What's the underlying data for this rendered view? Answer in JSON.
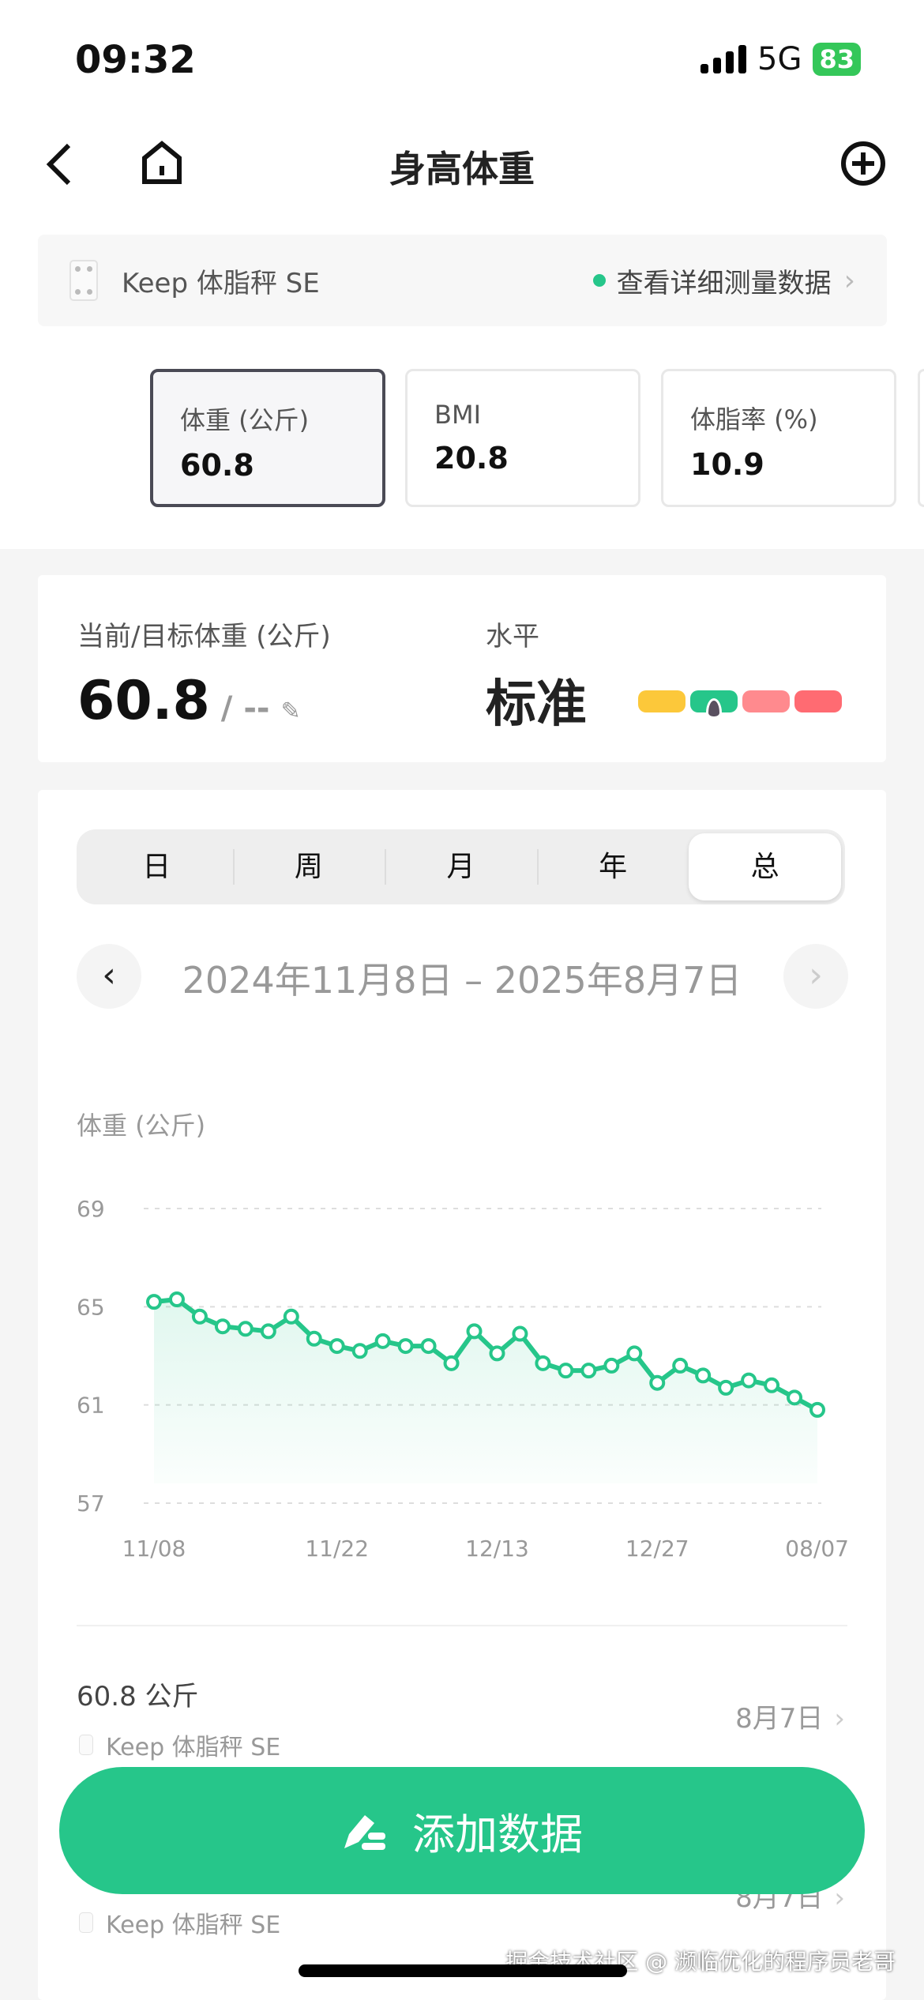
{
  "status_bar": {
    "time": "09:32",
    "network": "5G",
    "battery": "83"
  },
  "nav": {
    "title": "身高体重"
  },
  "device_bar": {
    "device": "Keep 体脂秤 SE",
    "detail_link": "查看详细测量数据"
  },
  "metrics": [
    {
      "label": "体重 (公斤)",
      "value": "60.8",
      "selected": true
    },
    {
      "label": "BMI",
      "value": "20.8",
      "selected": false
    },
    {
      "label": "体脂率 (%)",
      "value": "10.9",
      "selected": false
    }
  ],
  "summary": {
    "label": "当前/目标体重 (公斤)",
    "current": "60.8",
    "target": "/ --",
    "level_label": "水平",
    "level": "标准",
    "level_colors": [
      "#fcc83a",
      "#26c68a",
      "#ff8a8e",
      "#ff6b72"
    ],
    "level_index": 1
  },
  "tabs": [
    {
      "label": "日"
    },
    {
      "label": "周"
    },
    {
      "label": "月"
    },
    {
      "label": "年"
    },
    {
      "label": "总",
      "active": true
    }
  ],
  "date_range": "2024年11月8日 – 2025年8月7日",
  "chart_data": {
    "type": "line",
    "ylabel": "体重 (公斤)",
    "ylim": [
      57,
      69
    ],
    "yticks": [
      69,
      65,
      61,
      57
    ],
    "xticks": [
      {
        "index": 0,
        "label": "11/08"
      },
      {
        "index": 8,
        "label": "11/22"
      },
      {
        "index": 15,
        "label": "12/13"
      },
      {
        "index": 22,
        "label": "12/27"
      },
      {
        "index": 29,
        "label": "08/07"
      }
    ],
    "values": [
      65.2,
      65.3,
      64.6,
      64.2,
      64.1,
      64.0,
      64.6,
      63.7,
      63.4,
      63.2,
      63.6,
      63.4,
      63.4,
      62.7,
      64.0,
      63.1,
      63.9,
      62.7,
      62.4,
      62.4,
      62.6,
      63.1,
      61.9,
      62.6,
      62.2,
      61.7,
      62.0,
      61.8,
      61.3,
      60.8
    ],
    "color": "#26c68a",
    "grid": true
  },
  "records": [
    {
      "value": "60.8 公斤",
      "device": "Keep 体脂秤 SE",
      "date": "8月7日"
    },
    {
      "value": "",
      "device": "Keep 体脂秤 SE",
      "date": "8月7日"
    }
  ],
  "add_button": "添加数据",
  "watermark": "掘金技术社区 @ 濒临优化的程序员老哥"
}
